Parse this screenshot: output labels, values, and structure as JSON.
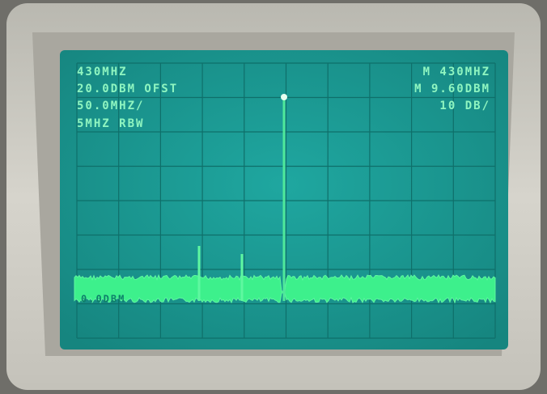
{
  "screen": {
    "left_lines": [
      "430MHZ",
      "20.0DBM OFST",
      "50.0MHZ/",
      "5MHZ RBW"
    ],
    "right_lines": [
      "M 430MHZ",
      "M 9.60DBM",
      "10 DB/"
    ],
    "reference_label": "0.0DBM"
  }
}
